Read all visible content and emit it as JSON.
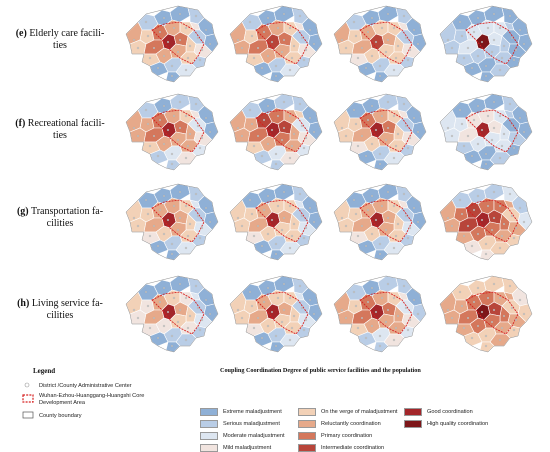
{
  "rows": [
    {
      "id": "e",
      "prefix": "(e)",
      "title": "Elderly care facilities",
      "top": 0,
      "label_lines": [
        "Elderly care facili-",
        "ties"
      ]
    },
    {
      "id": "f",
      "prefix": "(f)",
      "title": "Recreational facilities",
      "top": 88,
      "label_lines": [
        "Recreational facili-",
        "ties"
      ]
    },
    {
      "id": "g",
      "prefix": "(g)",
      "title": "Transportation facilities",
      "top": 178,
      "label_lines": [
        "Transportation fa-",
        "cilities"
      ]
    },
    {
      "id": "h",
      "prefix": "(h)",
      "title": "Living service facilities",
      "top": 270,
      "label_lines": [
        "Living service fa-",
        "cilities"
      ]
    }
  ],
  "legend": {
    "title": "Legend",
    "subtitle": "Coupling Coordination Degree of public service facilities and the population",
    "symbols": [
      {
        "label": "District /County Administrative Center"
      },
      {
        "label": "Wuhan-Ezhou-Huanggang-Huangshi Core Development Area"
      },
      {
        "label": "County boundary"
      }
    ],
    "classes": [
      {
        "label": "Extreme maladjustment",
        "color": "#8fb0d6"
      },
      {
        "label": "Serious maladjustment",
        "color": "#b9cde6"
      },
      {
        "label": "Moderate maladjustment",
        "color": "#dde6f1"
      },
      {
        "label": "Mild maladjustment",
        "color": "#f1e4df"
      },
      {
        "label": "On the verge of maladjustment",
        "color": "#f2d1b7"
      },
      {
        "label": "Reluctantly coordination",
        "color": "#e6a98a"
      },
      {
        "label": "Primary coordination",
        "color": "#d4775c"
      },
      {
        "label": "Intermediate coordination",
        "color": "#b8453a"
      },
      {
        "label": "Good coordination",
        "color": "#a3262a"
      },
      {
        "label": "High quality coordination",
        "color": "#7d1619"
      }
    ]
  }
}
